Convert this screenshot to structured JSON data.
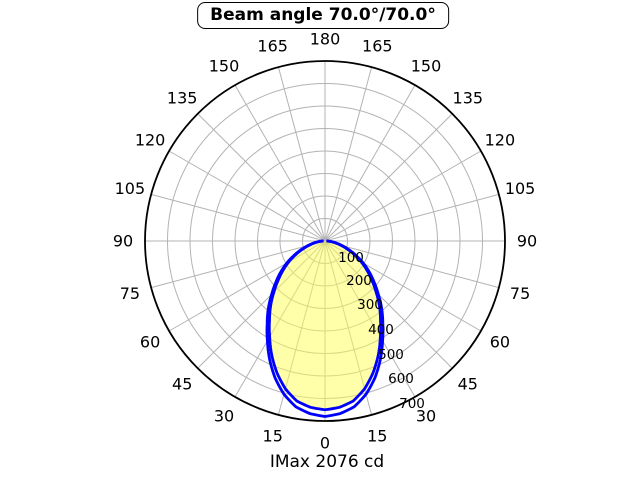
{
  "title": "Beam angle 70.0°/70.0°",
  "footer": "IMax 2076 cd",
  "chart_data": {
    "type": "polar",
    "title": "Beam angle 70.0°/70.0°",
    "annotation": "IMax 2076 cd",
    "imax_cd": 2076,
    "beam_angle_c0_deg": 70.0,
    "beam_angle_c90_deg": 70.0,
    "angle_labels_deg": [
      0,
      15,
      30,
      45,
      60,
      75,
      90,
      105,
      120,
      135,
      150,
      165,
      180
    ],
    "radial_ticks": [
      100,
      200,
      300,
      400,
      500,
      600,
      700
    ],
    "radial_max": 800,
    "grid_step_deg": 15,
    "series": [
      {
        "name": "curve-outer",
        "angles_deg": [
          0,
          5,
          10,
          15,
          20,
          25,
          30,
          35,
          40,
          45,
          50,
          55,
          60,
          65,
          70,
          75,
          80,
          85,
          90
        ],
        "values": [
          780,
          770,
          748,
          705,
          648,
          582,
          512,
          448,
          392,
          335,
          285,
          240,
          196,
          152,
          113,
          78,
          50,
          27,
          8
        ],
        "filled": false
      },
      {
        "name": "curve-inner",
        "angles_deg": [
          0,
          5,
          10,
          15,
          20,
          25,
          30,
          35,
          40,
          45,
          50,
          55,
          60,
          65,
          70,
          75,
          80,
          85,
          90
        ],
        "values": [
          750,
          742,
          722,
          680,
          624,
          560,
          492,
          430,
          376,
          321,
          272,
          228,
          186,
          144,
          106,
          72,
          45,
          24,
          6
        ],
        "filled": true
      }
    ],
    "colors": {
      "curve": "#0000ff",
      "fill": "#ffff55",
      "grid": "#b3b3b3",
      "outer_circle": "#000000",
      "text": "#000000"
    },
    "fill_opacity": 0.5
  }
}
